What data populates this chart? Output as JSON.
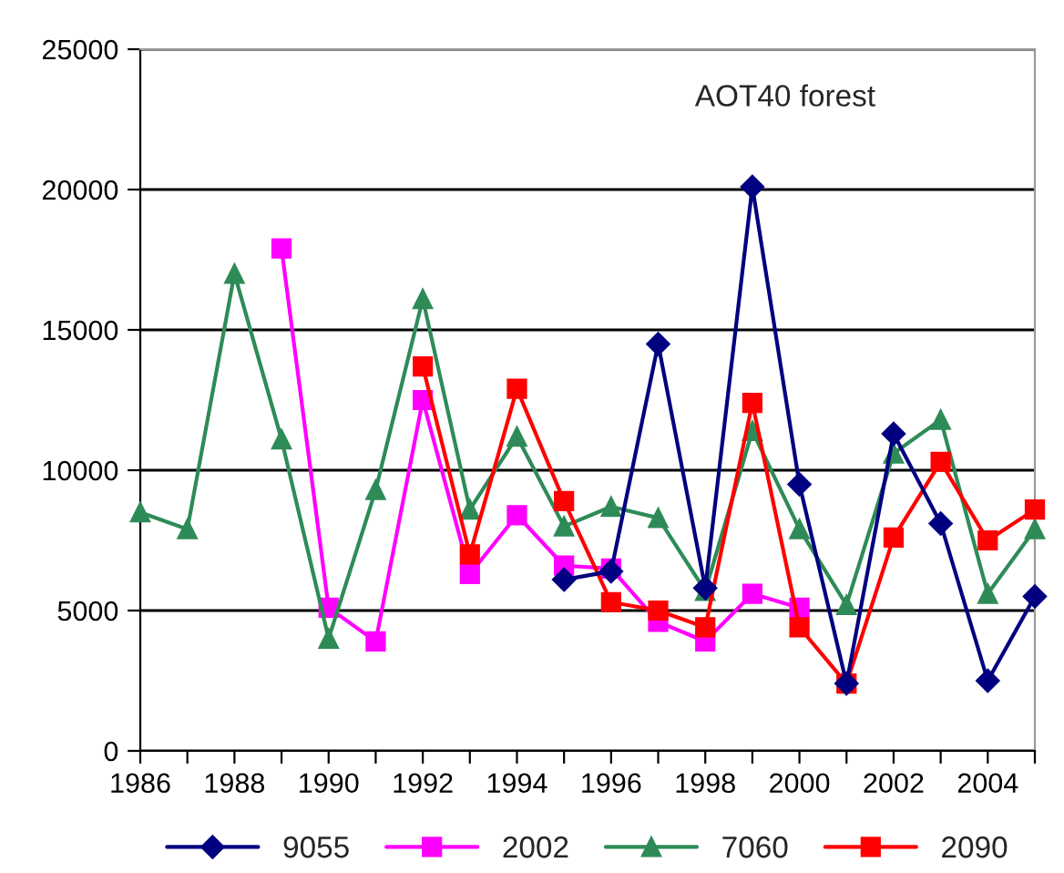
{
  "chart_data": {
    "type": "line",
    "x": [
      1986,
      1987,
      1988,
      1989,
      1990,
      1991,
      1992,
      1993,
      1994,
      1995,
      1996,
      1997,
      1998,
      1999,
      2000,
      2001,
      2002,
      2003,
      2004,
      2005
    ],
    "series": [
      {
        "name": "9055",
        "color": "#000080",
        "marker": "diamond",
        "values": [
          null,
          null,
          null,
          null,
          null,
          null,
          null,
          null,
          null,
          6100,
          6400,
          14500,
          5800,
          20100,
          9500,
          2400,
          11300,
          8100,
          2500,
          5500
        ]
      },
      {
        "name": "2002",
        "color": "#ff00ff",
        "marker": "square",
        "values": [
          null,
          null,
          null,
          17900,
          5100,
          3900,
          12500,
          6300,
          8400,
          6600,
          6500,
          4600,
          3900,
          5600,
          5100,
          null,
          null,
          null,
          null,
          null
        ]
      },
      {
        "name": "7060",
        "color": "#2e8b57",
        "marker": "triangle",
        "values": [
          8500,
          7900,
          17000,
          11100,
          4000,
          9300,
          16100,
          8600,
          11200,
          8000,
          8700,
          8300,
          5700,
          11400,
          7900,
          5200,
          10600,
          11800,
          5600,
          7900
        ]
      },
      {
        "name": "2090",
        "color": "#ff0000",
        "marker": "square",
        "values": [
          null,
          null,
          null,
          null,
          null,
          null,
          13700,
          7000,
          12900,
          8900,
          5300,
          5000,
          4400,
          12400,
          4400,
          2400,
          7600,
          10300,
          7500,
          8600
        ]
      }
    ],
    "xlim": [
      1986,
      2005
    ],
    "xticks": [
      1986,
      {
        "value": 1987,
        "label": null
      },
      1988,
      {
        "value": 1989,
        "label": null
      },
      1990,
      {
        "value": 1991,
        "label": null
      },
      1992,
      {
        "value": 1993,
        "label": null
      },
      1994,
      {
        "value": 1995,
        "label": null
      },
      1996,
      {
        "value": 1997,
        "label": null
      },
      1998,
      {
        "value": 1999,
        "label": null
      },
      2000,
      {
        "value": 2001,
        "label": null
      },
      2002,
      {
        "value": 2003,
        "label": null
      },
      2004,
      {
        "value": 2005,
        "label": null
      }
    ],
    "ylim": [
      0,
      25000
    ],
    "yticks": [
      0,
      5000,
      10000,
      15000,
      20000,
      25000
    ],
    "grid": "y",
    "legend": "bottom",
    "line_style": "solid",
    "annotations": [
      {
        "text": "AOT40 forest"
      }
    ]
  }
}
